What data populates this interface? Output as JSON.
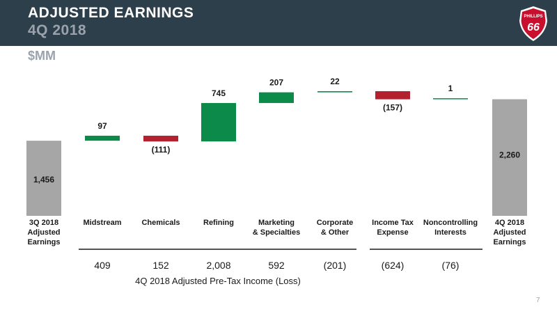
{
  "header": {
    "title": "ADJUSTED EARNINGS",
    "subtitle": "4Q 2018",
    "logo_text": [
      "PHILLIPS",
      "66"
    ]
  },
  "units": "$MM",
  "page_number": "7",
  "colors": {
    "header_bg": "#2e3f4c",
    "total": "#a6a6a6",
    "increase": "#0b8a4a",
    "decrease": "#b3212e",
    "line": "#1a1a1a",
    "logo_red": "#c8102e"
  },
  "chart_data": {
    "type": "bar",
    "subtype": "waterfall",
    "categories": [
      [
        "3Q 2018",
        "Adjusted",
        "Earnings"
      ],
      [
        "Midstream"
      ],
      [
        "Chemicals"
      ],
      [
        "Refining"
      ],
      [
        "Marketing",
        "& Specialties"
      ],
      [
        "Corporate",
        "& Other"
      ],
      [
        "Income Tax",
        "Expense"
      ],
      [
        "Noncontrolling",
        "Interests"
      ],
      [
        "4Q 2018",
        "Adjusted",
        "Earnings"
      ]
    ],
    "values": [
      1456,
      97,
      -111,
      745,
      207,
      22,
      -157,
      1,
      2260
    ],
    "value_labels": [
      "1,456",
      "97",
      "(111)",
      "745",
      "207",
      "22",
      "(157)",
      "1",
      "2,260"
    ],
    "bar_kinds": [
      "total",
      "delta",
      "delta",
      "delta",
      "delta",
      "delta",
      "delta",
      "delta",
      "total"
    ],
    "pretax": {
      "values": [
        409,
        152,
        2008,
        592,
        -201
      ],
      "labels": [
        "409",
        "152",
        "2,008",
        "592",
        "(201)"
      ]
    },
    "tax_and_nci": {
      "values": [
        -624,
        -76
      ],
      "labels": [
        "(624)",
        "(76)"
      ]
    },
    "footnote": "4Q 2018 Adjusted Pre-Tax Income (Loss)"
  }
}
